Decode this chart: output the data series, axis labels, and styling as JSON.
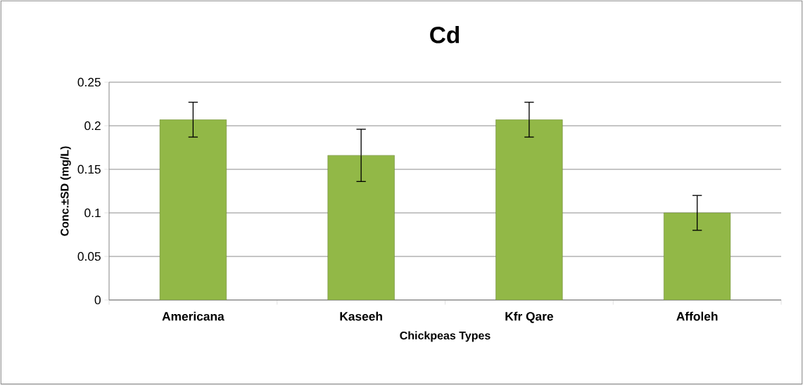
{
  "chart_data": {
    "type": "bar",
    "title": "Cd",
    "xlabel": "Chickpeas Types",
    "ylabel": "Conc.±SD  (mg/L)",
    "categories": [
      "Americana",
      "Kaseeh",
      "Kfr Qare",
      "Affoleh"
    ],
    "values": [
      0.207,
      0.166,
      0.207,
      0.1
    ],
    "errors": [
      0.02,
      0.03,
      0.02,
      0.02
    ],
    "color": "#92b847",
    "ylim": [
      0,
      0.25
    ],
    "yticks": [
      0,
      0.05,
      0.1,
      0.15,
      0.2,
      0.25
    ],
    "grid": "y"
  }
}
